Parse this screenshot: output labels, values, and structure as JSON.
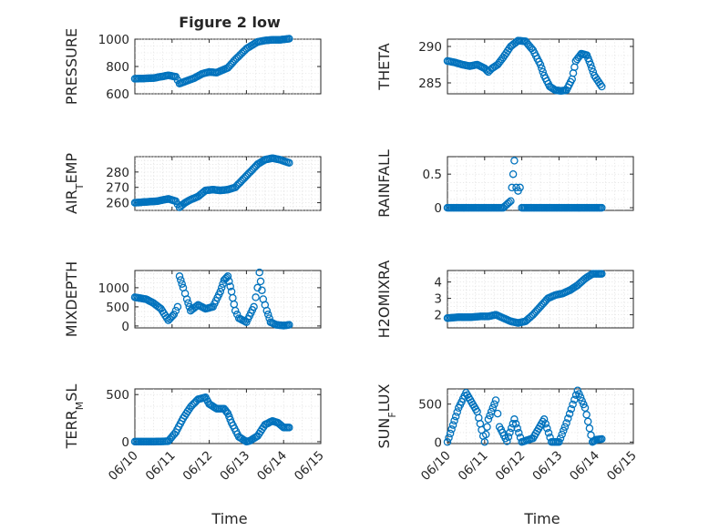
{
  "figure": {
    "title": "Figure 2 low",
    "xlabel": "Time",
    "marker_color": "#0072bd"
  },
  "chart_data": [
    {
      "type": "scatter",
      "title": "Figure 2 low",
      "ylabel": "PRESSURE",
      "ylabel_main": "PRESSURE",
      "ylim": [
        600,
        1000
      ],
      "yticks": [
        600,
        800,
        1000
      ],
      "xlim": [
        "06/10",
        "06/14"
      ],
      "xticks": [],
      "grid": true,
      "x_start": "2022-06-10T00:00",
      "x_end": "2022-06-14T04:00",
      "series": [
        {
          "name": "",
          "x_points": [
            0,
            0.5,
            0.9,
            1.1,
            1.2,
            1.35,
            1.6,
            1.8,
            2.0,
            2.2,
            2.5,
            2.7,
            3.0,
            3.3,
            3.5,
            3.7,
            3.9,
            4.0,
            4.15
          ],
          "values": [
            710,
            715,
            735,
            725,
            675,
            690,
            715,
            745,
            760,
            755,
            790,
            850,
            930,
            980,
            990,
            995,
            995,
            998,
            1003
          ]
        }
      ]
    },
    {
      "type": "scatter",
      "ylabel": "THETA",
      "ylabel_main": "THETA",
      "ylim": [
        283.5,
        291
      ],
      "yticks": [
        285,
        290
      ],
      "xlim": [
        "06/10",
        "06/14"
      ],
      "xticks": [],
      "grid": true,
      "x_start": "2022-06-10T00:00",
      "x_end": "2022-06-14T04:00",
      "series": [
        {
          "name": "",
          "x_points": [
            0,
            0.2,
            0.4,
            0.6,
            0.8,
            1.0,
            1.1,
            1.2,
            1.35,
            1.5,
            1.7,
            1.9,
            2.1,
            2.3,
            2.5,
            2.6,
            2.75,
            2.9,
            3.05,
            3.2,
            3.35,
            3.45,
            3.6,
            3.75,
            3.85,
            3.95,
            4.15
          ],
          "values": [
            288.0,
            287.8,
            287.5,
            287.3,
            287.5,
            287.0,
            286.5,
            287.0,
            287.5,
            288.5,
            290.0,
            290.8,
            290.7,
            289.5,
            287.5,
            286.0,
            284.5,
            284.0,
            283.9,
            284.0,
            285.5,
            288.0,
            289.0,
            288.8,
            287.5,
            286.0,
            284.5
          ]
        }
      ]
    },
    {
      "type": "scatter",
      "ylabel": "AIR_TEMP",
      "ylabel_main": "AIR",
      "ylabel_sub": "T",
      "ylabel_rest": "EMP",
      "ylim": [
        255,
        290
      ],
      "yticks": [
        260,
        270,
        280
      ],
      "xlim": [
        "06/10",
        "06/14"
      ],
      "xticks": [],
      "grid": true,
      "x_start": "2022-06-10T00:00",
      "x_end": "2022-06-14T04:00",
      "series": [
        {
          "name": "",
          "x_points": [
            0,
            0.3,
            0.6,
            0.9,
            1.1,
            1.2,
            1.35,
            1.5,
            1.7,
            1.9,
            2.1,
            2.3,
            2.5,
            2.7,
            2.9,
            3.1,
            3.3,
            3.5,
            3.7,
            3.9,
            4.15
          ],
          "values": [
            260,
            260.5,
            261,
            262.5,
            261,
            257,
            260,
            262,
            264,
            268,
            268.5,
            268,
            268.5,
            270,
            275,
            280,
            285,
            288,
            289,
            288,
            286
          ]
        }
      ]
    },
    {
      "type": "scatter",
      "ylabel": "RAINFALL",
      "ylabel_main": "RAINFALL",
      "ylim": [
        -0.04,
        0.76
      ],
      "yticks": [
        0,
        0.5
      ],
      "xlim": [
        "06/10",
        "06/14"
      ],
      "xticks": [],
      "grid": true,
      "x_start": "2022-06-10T00:00",
      "x_end": "2022-06-14T04:00",
      "series": [
        {
          "name": "",
          "x_points": [
            0.0,
            0.5,
            1.0,
            1.5,
            1.7,
            1.8,
            1.85,
            1.9,
            1.95,
            2.0,
            2.5,
            3.0,
            3.5,
            4.0,
            4.15
          ],
          "values": [
            0,
            0,
            0,
            0,
            0.1,
            0.7,
            0.3,
            0.25,
            0.3,
            0,
            0,
            0,
            0,
            0,
            0
          ]
        }
      ]
    },
    {
      "type": "scatter",
      "ylabel": "MIXDEPTH",
      "ylabel_main": "MIXDEPTH",
      "ylim": [
        -50,
        1450
      ],
      "yticks": [
        0,
        500,
        1000
      ],
      "xlim": [
        "06/10",
        "06/14"
      ],
      "xticks": [],
      "grid": true,
      "x_start": "2022-06-10T00:00",
      "x_end": "2022-06-14T04:00",
      "series": [
        {
          "name": "",
          "x_points": [
            0,
            0.3,
            0.5,
            0.7,
            0.9,
            1.05,
            1.15,
            1.2,
            1.3,
            1.4,
            1.5,
            1.7,
            1.9,
            2.1,
            2.3,
            2.4,
            2.5,
            2.6,
            2.7,
            2.8,
            3.0,
            3.2,
            3.3,
            3.35,
            3.45,
            3.55,
            3.65,
            3.8,
            4.0,
            4.15
          ],
          "values": [
            750,
            700,
            600,
            450,
            150,
            300,
            500,
            1300,
            1000,
            700,
            400,
            550,
            450,
            500,
            900,
            1200,
            1300,
            900,
            400,
            200,
            100,
            500,
            1000,
            1400,
            700,
            400,
            100,
            30,
            10,
            30
          ]
        }
      ]
    },
    {
      "type": "scatter",
      "ylabel": "H2OMIXRA",
      "ylabel_main": "H2OMIXRA",
      "ylim": [
        1.2,
        4.7
      ],
      "yticks": [
        2,
        3,
        4
      ],
      "xlim": [
        "06/10",
        "06/14"
      ],
      "xticks": [],
      "grid": true,
      "x_start": "2022-06-10T00:00",
      "x_end": "2022-06-14T04:00",
      "series": [
        {
          "name": "",
          "x_points": [
            0,
            0.3,
            0.6,
            0.9,
            1.1,
            1.3,
            1.5,
            1.7,
            1.9,
            2.1,
            2.3,
            2.5,
            2.7,
            2.9,
            3.1,
            3.3,
            3.5,
            3.7,
            3.9,
            4.05,
            4.15
          ],
          "values": [
            1.8,
            1.85,
            1.85,
            1.9,
            1.9,
            2.0,
            1.8,
            1.6,
            1.5,
            1.6,
            2.0,
            2.5,
            3.0,
            3.2,
            3.3,
            3.5,
            3.8,
            4.2,
            4.5,
            4.5,
            4.5
          ]
        }
      ]
    },
    {
      "type": "scatter",
      "ylabel": "TERR_MSL",
      "ylabel_main": "TERR",
      "ylabel_sub": "M",
      "ylabel_rest": "SL",
      "ylim": [
        -20,
        560
      ],
      "yticks": [
        0,
        500
      ],
      "xlim": [
        "06/10",
        "06/15"
      ],
      "xticks": [
        "06/10",
        "06/11",
        "06/12",
        "06/13",
        "06/14",
        "06/15"
      ],
      "grid": true,
      "x_start": "2022-06-10T00:00",
      "x_end": "2022-06-15T00:00",
      "series": [
        {
          "name": "",
          "x_points": [
            0,
            0.5,
            0.9,
            1.1,
            1.3,
            1.5,
            1.7,
            1.9,
            2.0,
            2.2,
            2.4,
            2.5,
            2.6,
            2.8,
            3.0,
            3.1,
            3.3,
            3.5,
            3.7,
            3.85,
            4.0,
            4.15
          ],
          "values": [
            0,
            0,
            5,
            100,
            250,
            370,
            450,
            470,
            400,
            350,
            350,
            300,
            200,
            50,
            0,
            10,
            60,
            180,
            220,
            200,
            150,
            150
          ]
        }
      ]
    },
    {
      "type": "scatter",
      "ylabel": "SUN_FLUX",
      "ylabel_main": "SUN",
      "ylabel_sub": "F",
      "ylabel_rest": "LUX",
      "ylim": [
        -20,
        700
      ],
      "yticks": [
        0,
        500
      ],
      "xlim": [
        "06/10",
        "06/15"
      ],
      "xticks": [
        "06/10",
        "06/11",
        "06/12",
        "06/13",
        "06/14",
        "06/15"
      ],
      "grid": true,
      "x_start": "2022-06-10T00:00",
      "x_end": "2022-06-15T00:00",
      "series": [
        {
          "name": "",
          "x_points": [
            0,
            0.3,
            0.5,
            0.8,
            1.0,
            1.1,
            1.3,
            1.4,
            1.6,
            1.8,
            2.0,
            2.3,
            2.6,
            2.8,
            3.0,
            3.2,
            3.5,
            3.7,
            3.9,
            4.0,
            4.15
          ],
          "values": [
            0,
            450,
            650,
            400,
            0,
            300,
            550,
            200,
            10,
            300,
            0,
            50,
            300,
            0,
            0,
            250,
            680,
            450,
            0,
            30,
            40
          ]
        }
      ]
    }
  ]
}
